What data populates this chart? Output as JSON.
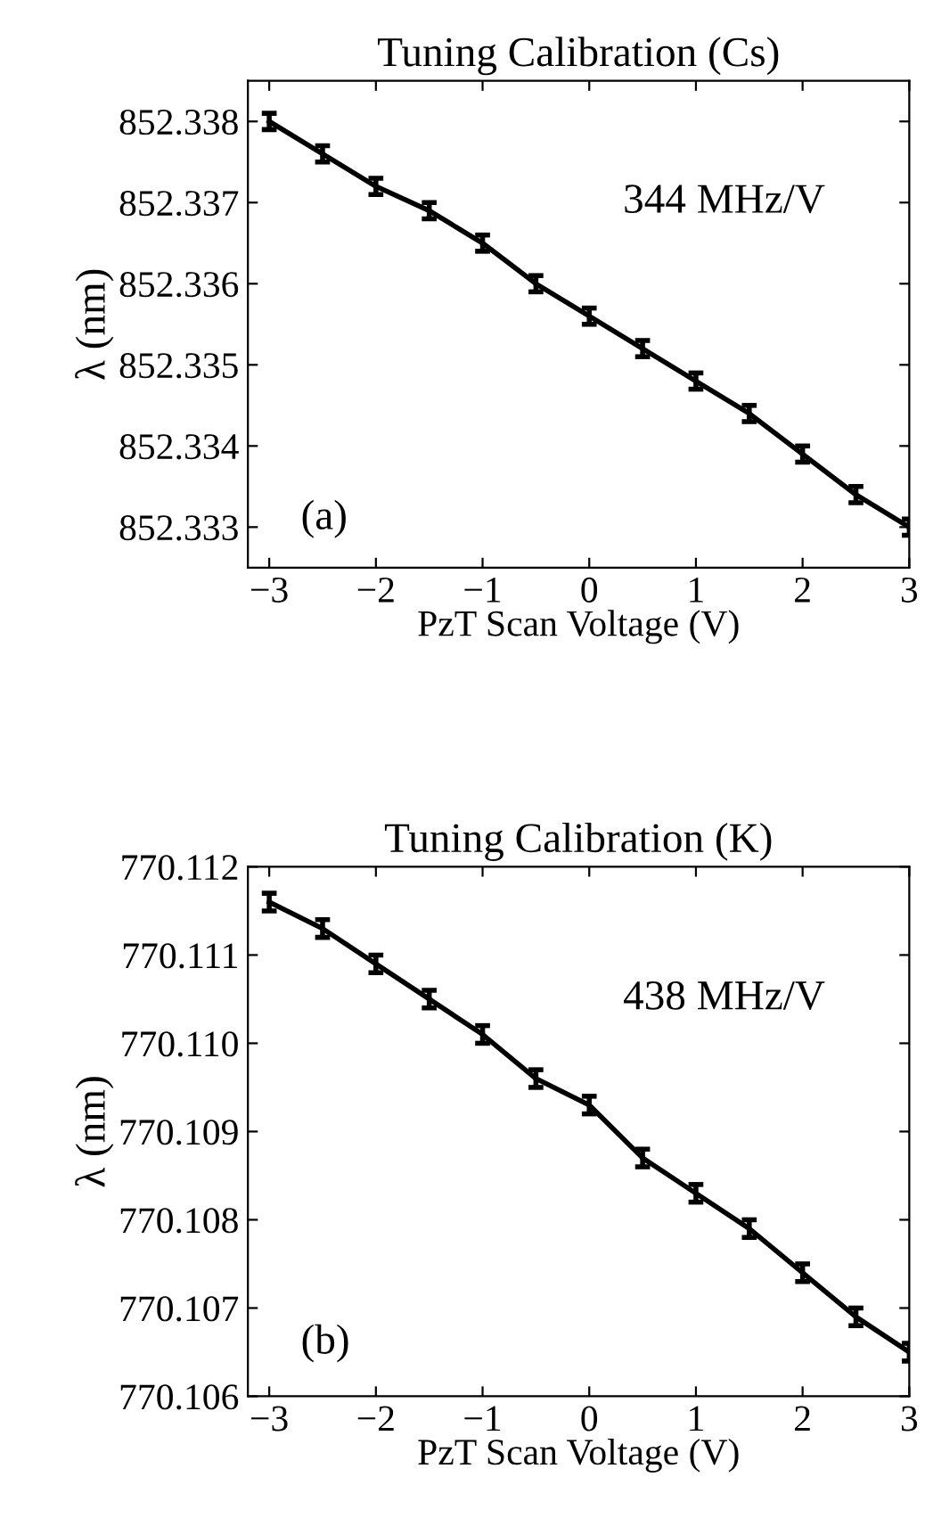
{
  "chart_data": [
    {
      "type": "line",
      "title": "Tuning Calibration (Cs)",
      "xlabel": "PzT Scan Voltage (V)",
      "ylabel": "λ (nm)",
      "annotations": [
        "344 MHz/V",
        "(a)"
      ],
      "x": [
        -3,
        -2.5,
        -2,
        -1.5,
        -1,
        -0.5,
        0,
        0.5,
        1,
        1.5,
        2,
        2.5,
        3
      ],
      "series": [
        {
          "color": "#000000",
          "values": [
            852.338,
            852.3376,
            852.3372,
            852.3369,
            852.3365,
            852.336,
            852.3356,
            852.3352,
            852.3348,
            852.3344,
            852.3339,
            852.3334,
            852.333
          ],
          "errors": [
            0.0001,
            0.0001,
            0.0001,
            0.0001,
            0.0001,
            0.0001,
            0.0001,
            0.0001,
            0.0001,
            0.0001,
            0.0001,
            0.0001,
            0.0001
          ]
        }
      ],
      "xlim": [
        -3.2,
        3
      ],
      "xticks": [
        {
          "value": -3,
          "label": "−3"
        },
        {
          "value": -2,
          "label": "−2"
        },
        {
          "value": -1,
          "label": "−1"
        },
        0,
        1,
        2,
        3
      ],
      "ylim": [
        852.3325,
        852.3385
      ],
      "yticks": [
        {
          "value": 852.333,
          "label": "852.333"
        },
        {
          "value": 852.334,
          "label": "852.334"
        },
        {
          "value": 852.335,
          "label": "852.335"
        },
        {
          "value": 852.336,
          "label": "852.336"
        },
        {
          "value": 852.337,
          "label": "852.337"
        },
        {
          "value": 852.338,
          "label": "852.338"
        }
      ],
      "grid": false,
      "legend": false,
      "marker": "none",
      "line_style": "solid"
    },
    {
      "type": "line",
      "title": "Tuning Calibration (K)",
      "xlabel": "PzT Scan Voltage (V)",
      "ylabel": "λ (nm)",
      "annotations": [
        "438 MHz/V",
        "(b)"
      ],
      "x": [
        -3,
        -2.5,
        -2,
        -1.5,
        -1,
        -0.5,
        0,
        0.5,
        1,
        1.5,
        2,
        2.5,
        3
      ],
      "series": [
        {
          "color": "#000000",
          "values": [
            770.1116,
            770.1113,
            770.1109,
            770.1105,
            770.1101,
            770.1096,
            770.1093,
            770.1087,
            770.1083,
            770.1079,
            770.1074,
            770.1069,
            770.1065
          ],
          "errors": [
            0.0001,
            0.0001,
            0.0001,
            0.0001,
            0.0001,
            0.0001,
            0.0001,
            0.0001,
            0.0001,
            0.0001,
            0.0001,
            0.0001,
            0.0001
          ]
        }
      ],
      "xlim": [
        -3.2,
        3
      ],
      "xticks": [
        {
          "value": -3,
          "label": "−3"
        },
        {
          "value": -2,
          "label": "−2"
        },
        {
          "value": -1,
          "label": "−1"
        },
        0,
        1,
        2,
        3
      ],
      "ylim": [
        770.106,
        770.112
      ],
      "yticks": [
        {
          "value": 770.106,
          "label": "770.106"
        },
        {
          "value": 770.107,
          "label": "770.107"
        },
        {
          "value": 770.108,
          "label": "770.108"
        },
        {
          "value": 770.109,
          "label": "770.109"
        },
        {
          "value": 770.11,
          "label": "770.110"
        },
        {
          "value": 770.111,
          "label": "770.111"
        },
        {
          "value": 770.112,
          "label": "770.112"
        }
      ],
      "grid": false,
      "legend": false,
      "marker": "none",
      "line_style": "solid"
    }
  ]
}
